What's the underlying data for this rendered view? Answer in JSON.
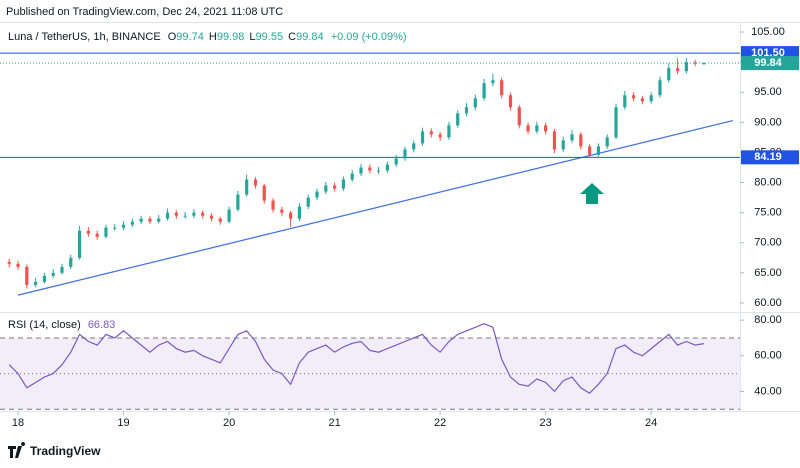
{
  "chart_data": {
    "type": "candlestick",
    "header": "Published on TradingView.com, Dec 24, 2021 11:08 UTC",
    "symbol": "Luna / TetherUS, 1h, BINANCE",
    "ohlc_labels": [
      "O",
      "H",
      "L",
      "C"
    ],
    "change_label": "+0.09 (+0.09%)",
    "footer": "TradingView",
    "up_color": "#26a69a",
    "down_color": "#ef5350",
    "x": [
      -2,
      0,
      2,
      4,
      6,
      8,
      10,
      12,
      14,
      16,
      18,
      20,
      22,
      24,
      26,
      28,
      30,
      32,
      34,
      36,
      38,
      40,
      42,
      44,
      46,
      48,
      50,
      52,
      54,
      56,
      58,
      60,
      62,
      64,
      66,
      68,
      70,
      72,
      74,
      76,
      78,
      80,
      82,
      84,
      86,
      88,
      90,
      92,
      94,
      96,
      98,
      100,
      102,
      104,
      106,
      108,
      110,
      112,
      114,
      116,
      118,
      120,
      122,
      124,
      126,
      128,
      130,
      132,
      134,
      136,
      138,
      140,
      142,
      144,
      146,
      148,
      150,
      152,
      154,
      156
    ],
    "ohlc": [
      [
        66.8,
        67.3,
        65.9,
        66.5
      ],
      [
        66.5,
        67,
        65.5,
        66
      ],
      [
        66,
        66.4,
        62.4,
        63
      ],
      [
        63,
        64.2,
        62.6,
        63.5
      ],
      [
        63.5,
        65,
        63.2,
        64.5
      ],
      [
        64.5,
        65.6,
        64.1,
        65
      ],
      [
        65,
        66.5,
        64.7,
        66
      ],
      [
        66,
        68,
        65.6,
        67.5
      ],
      [
        67.5,
        72.8,
        67.2,
        72
      ],
      [
        72,
        72.6,
        71,
        71.5
      ],
      [
        71.5,
        72,
        70.5,
        71
      ],
      [
        71,
        73,
        70.7,
        72.5
      ],
      [
        72.5,
        73.1,
        72,
        72.5
      ],
      [
        72.5,
        73.6,
        72.1,
        73
      ],
      [
        73,
        74,
        72.6,
        73.5
      ],
      [
        73.5,
        74.5,
        73.1,
        74
      ],
      [
        74,
        74.4,
        73.1,
        73.5
      ],
      [
        73.5,
        74.6,
        73.2,
        74
      ],
      [
        74,
        75.7,
        73.7,
        75
      ],
      [
        75,
        75.4,
        74,
        74.5
      ],
      [
        74.5,
        75.1,
        74,
        74.5
      ],
      [
        74.5,
        75.6,
        74.1,
        75
      ],
      [
        75,
        75.4,
        74,
        74.5
      ],
      [
        74.5,
        74.9,
        73.5,
        74
      ],
      [
        74,
        74.3,
        73,
        73.5
      ],
      [
        73.5,
        76,
        73.2,
        75.5
      ],
      [
        75.5,
        78.6,
        75.2,
        78
      ],
      [
        78,
        81.3,
        77.7,
        80.5
      ],
      [
        80.5,
        80.9,
        79,
        79.5
      ],
      [
        79.5,
        79.8,
        76.5,
        77
      ],
      [
        77,
        77.4,
        75,
        75.5
      ],
      [
        75.5,
        76,
        74.4,
        75
      ],
      [
        75,
        75.3,
        72.6,
        74
      ],
      [
        74,
        76.6,
        73.6,
        76
      ],
      [
        76,
        78,
        75.6,
        77.5
      ],
      [
        77.5,
        79,
        77.1,
        78.5
      ],
      [
        78.5,
        80.1,
        78.1,
        79.5
      ],
      [
        79.5,
        80,
        78.5,
        79
      ],
      [
        79,
        81,
        78.6,
        80.5
      ],
      [
        80.5,
        82.1,
        80.1,
        81.5
      ],
      [
        81.5,
        83.1,
        81.1,
        82.5
      ],
      [
        82.5,
        83,
        81.5,
        82
      ],
      [
        82,
        82.6,
        81.4,
        82
      ],
      [
        82,
        83.5,
        81.6,
        83
      ],
      [
        83,
        84.6,
        82.6,
        84
      ],
      [
        84,
        86,
        83.6,
        85.5
      ],
      [
        85.5,
        87,
        85,
        86.5
      ],
      [
        86.5,
        89.1,
        86.1,
        88.5
      ],
      [
        88.5,
        89,
        87.5,
        88
      ],
      [
        88,
        88.4,
        86.9,
        87.5
      ],
      [
        87.5,
        90.1,
        87.1,
        89.5
      ],
      [
        89.5,
        92,
        89.1,
        91.5
      ],
      [
        91.5,
        93.2,
        91,
        92.5
      ],
      [
        92.5,
        94.6,
        92,
        94
      ],
      [
        94,
        97.2,
        93.6,
        96.5
      ],
      [
        96.5,
        98.1,
        96,
        97
      ],
      [
        97,
        97.4,
        94,
        94.5
      ],
      [
        94.5,
        94.9,
        92,
        92.5
      ],
      [
        92.5,
        92.9,
        89,
        89.5
      ],
      [
        89.5,
        90,
        88,
        88.5
      ],
      [
        88.5,
        90.1,
        88.1,
        89.5
      ],
      [
        89.5,
        90,
        88,
        88.5
      ],
      [
        88.5,
        88.9,
        84.9,
        85.5
      ],
      [
        85.5,
        87.6,
        85.1,
        87
      ],
      [
        87,
        88.7,
        86.6,
        88
      ],
      [
        88,
        88.4,
        85.5,
        86
      ],
      [
        86,
        86.4,
        84.2,
        84.6
      ],
      [
        84.6,
        86.5,
        84.3,
        86
      ],
      [
        86,
        88,
        85.6,
        87.5
      ],
      [
        87.5,
        93.1,
        87.2,
        92.5
      ],
      [
        92.5,
        95.2,
        92.1,
        94.5
      ],
      [
        94.5,
        95,
        93.5,
        94
      ],
      [
        94,
        94.4,
        93,
        93.5
      ],
      [
        93.5,
        95,
        93.1,
        94.5
      ],
      [
        94.5,
        97.6,
        94.1,
        97
      ],
      [
        97,
        99.8,
        96.6,
        99
      ],
      [
        99,
        100.6,
        98,
        98.5
      ],
      [
        98.5,
        100.7,
        98.1,
        100
      ],
      [
        100,
        100.4,
        99.3,
        99.75
      ],
      [
        99.74,
        99.98,
        99.55,
        99.84
      ]
    ],
    "xlim": [
      -4.1,
      164.2
    ],
    "xticks": [
      {
        "value": 0,
        "label": "18"
      },
      {
        "value": 24,
        "label": "19"
      },
      {
        "value": 48,
        "label": "20"
      },
      {
        "value": 72,
        "label": "21"
      },
      {
        "value": 96,
        "label": "22"
      },
      {
        "value": 120,
        "label": "23"
      },
      {
        "value": 144,
        "label": "24"
      }
    ],
    "ylim": [
      58.5,
      106.5
    ],
    "yticks": [
      {
        "value": 60,
        "label": "60.00"
      },
      {
        "value": 65,
        "label": "65.00"
      },
      {
        "value": 70,
        "label": "70.00"
      },
      {
        "value": 75,
        "label": "75.00"
      },
      {
        "value": 80,
        "label": "80.00"
      },
      {
        "value": 85,
        "label": "85.00"
      },
      {
        "value": 90,
        "label": "90.00"
      },
      {
        "value": 95,
        "label": "95.00"
      },
      {
        "value": 100,
        "label": "100.00"
      },
      {
        "value": 105,
        "label": "105.00"
      }
    ],
    "price_lines": [
      {
        "value": 101.5,
        "label": "101.50",
        "color": "#1e53e5"
      },
      {
        "value": 84.19,
        "label": "84.19",
        "color": "#1e53e5"
      }
    ],
    "last_price_label": "99.84",
    "last_price_color": "#26a69a",
    "trend_line": {
      "x": [
        0,
        162.6
      ],
      "values": [
        61.3,
        90.3
      ],
      "color": "#3d6fe0"
    },
    "rsi": {
      "label": "RSI (14, close)",
      "color": "#7e57c2",
      "values": [
        55,
        50,
        42,
        45,
        48,
        50,
        55,
        62,
        72,
        68,
        66,
        72,
        70,
        74,
        70,
        66,
        62,
        66,
        68,
        64,
        62,
        63,
        60,
        58,
        56,
        64,
        72,
        74,
        68,
        58,
        52,
        50,
        44,
        56,
        62,
        64,
        66,
        62,
        65,
        67,
        68,
        63,
        62,
        64,
        66,
        68,
        70,
        72,
        66,
        62,
        68,
        72,
        74,
        76,
        78,
        76,
        58,
        48,
        44,
        43,
        47,
        45,
        40,
        46,
        48,
        42,
        39,
        44,
        50,
        64,
        66,
        62,
        60,
        64,
        68,
        72,
        66,
        68,
        66,
        66.83
      ],
      "ylim": [
        29,
        84
      ],
      "yticks": [
        {
          "value": 40,
          "label": "40.00"
        },
        {
          "value": 60,
          "label": "60.00"
        },
        {
          "value": 80,
          "label": "80.00"
        }
      ],
      "bands": [
        30,
        70
      ],
      "mid": 50
    }
  }
}
